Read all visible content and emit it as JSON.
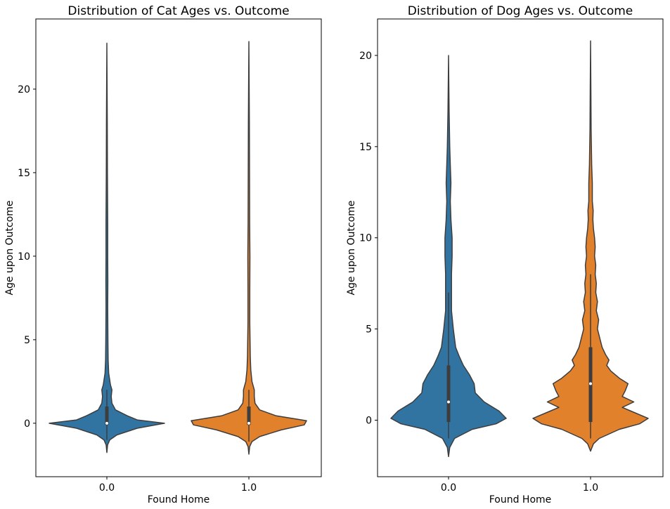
{
  "chart_data": [
    {
      "type": "violin",
      "title": "Distribution of Cat Ages vs. Outcome",
      "xlabel": "Found Home",
      "ylabel": "Age upon Outcome",
      "categories": [
        "0.0",
        "1.0"
      ],
      "ylim": [
        -3.2,
        24.2
      ],
      "yticks": [
        0,
        5,
        10,
        15,
        20
      ],
      "grid": false,
      "violins": [
        {
          "category": "0.0",
          "color": "#3274a1",
          "min": -1.75,
          "max": 22.75,
          "q1": -0.1,
          "median": 0.0,
          "q3": 1.0,
          "whisker_low": -1.0,
          "whisker_high": 2.0,
          "profile": [
            [
              -1.75,
              0
            ],
            [
              -1.3,
              0.01
            ],
            [
              -1.0,
              0.04
            ],
            [
              -0.7,
              0.14
            ],
            [
              -0.3,
              0.42
            ],
            [
              0.0,
              0.8
            ],
            [
              0.2,
              0.42
            ],
            [
              0.45,
              0.28
            ],
            [
              0.8,
              0.12
            ],
            [
              1.2,
              0.07
            ],
            [
              1.6,
              0.06
            ],
            [
              2.0,
              0.07
            ],
            [
              2.3,
              0.05
            ],
            [
              3.0,
              0.025
            ],
            [
              3.8,
              0.018
            ],
            [
              5.0,
              0.015
            ],
            [
              7.0,
              0.012
            ],
            [
              8.5,
              0.014
            ],
            [
              10.0,
              0.012
            ],
            [
              12.0,
              0.012
            ],
            [
              15.0,
              0.008
            ],
            [
              18.0,
              0.006
            ],
            [
              22.75,
              0
            ]
          ]
        },
        {
          "category": "1.0",
          "color": "#e1812c",
          "min": -1.85,
          "max": 22.85,
          "q1": -0.1,
          "median": 0.0,
          "q3": 1.0,
          "whisker_low": -1.1,
          "whisker_high": 2.0,
          "profile": [
            [
              -1.85,
              0
            ],
            [
              -1.4,
              0.01
            ],
            [
              -1.1,
              0.04
            ],
            [
              -0.8,
              0.14
            ],
            [
              -0.4,
              0.42
            ],
            [
              -0.1,
              0.72
            ],
            [
              0.15,
              0.75
            ],
            [
              0.45,
              0.35
            ],
            [
              0.8,
              0.14
            ],
            [
              1.2,
              0.08
            ],
            [
              1.6,
              0.07
            ],
            [
              2.0,
              0.07
            ],
            [
              2.5,
              0.04
            ],
            [
              3.2,
              0.025
            ],
            [
              4.0,
              0.018
            ],
            [
              6.0,
              0.012
            ],
            [
              8.0,
              0.012
            ],
            [
              10.0,
              0.014
            ],
            [
              12.0,
              0.01
            ],
            [
              15.0,
              0.008
            ],
            [
              18.0,
              0.006
            ],
            [
              22.85,
              0
            ]
          ]
        }
      ]
    },
    {
      "type": "violin",
      "title": "Distribution of Dog Ages vs. Outcome",
      "xlabel": "Found Home",
      "ylabel": "Age upon Outcome",
      "categories": [
        "0.0",
        "1.0"
      ],
      "ylim": [
        -3.1,
        22.0
      ],
      "yticks": [
        0,
        5,
        10,
        15,
        20
      ],
      "grid": false,
      "violins": [
        {
          "category": "0.0",
          "color": "#3274a1",
          "min": -2.0,
          "max": 20.0,
          "q1": -0.1,
          "median": 1.0,
          "q3": 3.0,
          "whisker_low": -1.0,
          "whisker_high": 7.0,
          "profile": [
            [
              -2.0,
              0
            ],
            [
              -1.5,
              0.02
            ],
            [
              -1.0,
              0.1
            ],
            [
              -0.5,
              0.4
            ],
            [
              -0.2,
              0.8
            ],
            [
              0.1,
              0.97
            ],
            [
              0.5,
              0.85
            ],
            [
              1.0,
              0.6
            ],
            [
              1.5,
              0.45
            ],
            [
              2.0,
              0.43
            ],
            [
              2.5,
              0.35
            ],
            [
              3.0,
              0.25
            ],
            [
              3.5,
              0.18
            ],
            [
              4.0,
              0.12
            ],
            [
              5.0,
              0.08
            ],
            [
              6.0,
              0.05
            ],
            [
              7.0,
              0.05
            ],
            [
              8.0,
              0.05
            ],
            [
              9.0,
              0.06
            ],
            [
              10.0,
              0.06
            ],
            [
              11.0,
              0.04
            ],
            [
              12.0,
              0.03
            ],
            [
              13.0,
              0.04
            ],
            [
              14.0,
              0.03
            ],
            [
              15.0,
              0.02
            ],
            [
              17.0,
              0.01
            ],
            [
              20.0,
              0
            ]
          ]
        },
        {
          "category": "1.0",
          "color": "#e1812c",
          "min": -1.7,
          "max": 20.8,
          "q1": -0.1,
          "median": 2.0,
          "q3": 4.0,
          "whisker_low": -1.0,
          "whisker_high": 8.0,
          "profile": [
            [
              -1.7,
              0
            ],
            [
              -1.3,
              0.05
            ],
            [
              -1.0,
              0.15
            ],
            [
              -0.5,
              0.5
            ],
            [
              -0.2,
              0.85
            ],
            [
              0.1,
              1.0
            ],
            [
              0.5,
              0.7
            ],
            [
              0.7,
              0.55
            ],
            [
              1.0,
              0.75
            ],
            [
              1.3,
              0.55
            ],
            [
              1.6,
              0.6
            ],
            [
              2.0,
              0.65
            ],
            [
              2.3,
              0.5
            ],
            [
              2.7,
              0.35
            ],
            [
              3.0,
              0.28
            ],
            [
              3.3,
              0.32
            ],
            [
              3.6,
              0.26
            ],
            [
              4.0,
              0.2
            ],
            [
              4.5,
              0.16
            ],
            [
              5.0,
              0.12
            ],
            [
              5.5,
              0.14
            ],
            [
              6.0,
              0.1
            ],
            [
              6.5,
              0.12
            ],
            [
              7.0,
              0.09
            ],
            [
              7.5,
              0.1
            ],
            [
              8.0,
              0.08
            ],
            [
              8.5,
              0.09
            ],
            [
              9.0,
              0.07
            ],
            [
              9.5,
              0.08
            ],
            [
              10.0,
              0.07
            ],
            [
              10.5,
              0.05
            ],
            [
              11.0,
              0.04
            ],
            [
              11.5,
              0.045
            ],
            [
              12.0,
              0.03
            ],
            [
              13.0,
              0.03
            ],
            [
              14.0,
              0.02
            ],
            [
              16.0,
              0.01
            ],
            [
              18.0,
              0.006
            ],
            [
              20.8,
              0
            ]
          ]
        }
      ]
    }
  ]
}
